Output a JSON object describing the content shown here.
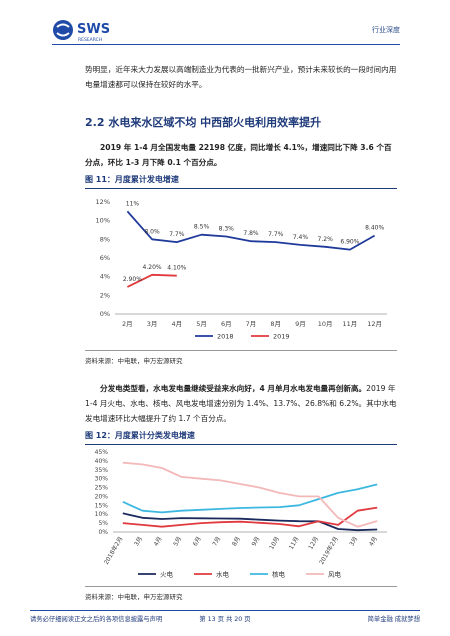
{
  "header": {
    "logo": "SWS",
    "logo_sub": "RESEARCH",
    "tag": "行业深度"
  },
  "paragraphs": [
    {
      "text": "势明显，近年来大力发展以高端制造业为代表的一批新兴产业，预计未来较长的一段时间内用电量增速都可以保持在较好的水平。"
    },
    {
      "bold": "2019 年 1-4 月全国发电量 22198 亿度，同比增长 4.1%，增速同比下降 3.6 个百分点，环比 1-3 月下降 0.1 个百分点。"
    },
    {
      "bold": "分发电类型看，水电发电量继续受益来水向好，4 月单月水电发电量再创新高。",
      "text": "2019 年 1-4 月火电、水电、核电、风电发电增速分别为 1.4%、13.7%、26.8%和 6.2%。其中水电发电增速环比大幅提升了约 1.7 个百分点。"
    }
  ],
  "section_title": "2.2 水电来水区域不均 中西部火电利用效率提升",
  "chart_data": [
    {
      "type": "line",
      "title": "图 11：月度累计发电增速",
      "source": "资料来源：中电联，申万宏源研究",
      "categories": [
        "2月",
        "3月",
        "4月",
        "5月",
        "6月",
        "7月",
        "8月",
        "9月",
        "10月",
        "11月",
        "12月"
      ],
      "series": [
        {
          "name": "2018",
          "color": "#1f3a9a",
          "values": [
            11,
            8.0,
            7.7,
            8.5,
            8.3,
            7.8,
            7.7,
            7.4,
            7.2,
            6.9,
            8.4
          ],
          "value_labels": [
            "11%",
            "8.0%",
            "7.7%",
            "8.5%",
            "8.3%",
            "7.8%",
            "7.7%",
            "7.4%",
            "7.2%",
            "6.90%",
            "8.40%"
          ]
        },
        {
          "name": "2019",
          "color": "#e0393e",
          "values": [
            2.9,
            4.2,
            4.1,
            null,
            null,
            null,
            null,
            null,
            null,
            null,
            null
          ],
          "value_labels": [
            "2.90%",
            "4.20%",
            "4.10%",
            null,
            null,
            null,
            null,
            null,
            null,
            null,
            null
          ]
        }
      ],
      "ylim": [
        0,
        12
      ],
      "yticks": [
        {
          "value": 0,
          "label": "0%"
        },
        {
          "value": 2,
          "label": "2%"
        },
        {
          "value": 4,
          "label": "4%"
        },
        {
          "value": 6,
          "label": "6%"
        },
        {
          "value": 8,
          "label": "8%"
        },
        {
          "value": 10,
          "label": "10%"
        },
        {
          "value": 12,
          "label": "12%"
        }
      ],
      "grid": false,
      "legend": "bottom"
    },
    {
      "type": "line",
      "title": "图 12：月度累计分类发电增速",
      "source": "资料来源：中电联，申万宏源研究",
      "categories": [
        "2018年2月",
        "3月",
        "4月",
        "5月",
        "6月",
        "7月",
        "8月",
        "9月",
        "10月",
        "11月",
        "12月",
        "2019年2月",
        "3月",
        "4月"
      ],
      "series": [
        {
          "name": "火电",
          "color": "#1b2a5c",
          "values": [
            10.5,
            8.0,
            7.3,
            7.8,
            7.7,
            7.6,
            7.5,
            6.9,
            6.4,
            6.1,
            6.0,
            1.7,
            1.0,
            1.4
          ]
        },
        {
          "name": "水电",
          "color": "#e0393e",
          "values": [
            5,
            4,
            3,
            4,
            5,
            5.5,
            5.8,
            5.2,
            4.5,
            3.2,
            6.0,
            4.0,
            12,
            13.7
          ]
        },
        {
          "name": "核电",
          "color": "#3cb8e0",
          "values": [
            17,
            12,
            11,
            12,
            12.5,
            13,
            13.5,
            13.8,
            14,
            15,
            18.5,
            22,
            24,
            26.8
          ]
        },
        {
          "name": "风电",
          "color": "#f3b8b8",
          "values": [
            39,
            38,
            36,
            31,
            30,
            29,
            27,
            25,
            22,
            20,
            20,
            8,
            3,
            6.2
          ]
        }
      ],
      "ylim": [
        0,
        45
      ],
      "yticks": [
        {
          "value": 0,
          "label": "0%"
        },
        {
          "value": 5,
          "label": "5%"
        },
        {
          "value": 10,
          "label": "10%"
        },
        {
          "value": 15,
          "label": "15%"
        },
        {
          "value": 20,
          "label": "20%"
        },
        {
          "value": 25,
          "label": "25%"
        },
        {
          "value": 30,
          "label": "30%"
        },
        {
          "value": 35,
          "label": "35%"
        },
        {
          "value": 40,
          "label": "40%"
        },
        {
          "value": 45,
          "label": "45%"
        }
      ],
      "grid": false,
      "legend": "bottom"
    }
  ],
  "footer": {
    "disclaimer": "请务必仔细阅读正文之后的各项信息披露与声明",
    "page": "第 13 页 共 20 页",
    "slogan": "简单金融 成就梦想"
  }
}
